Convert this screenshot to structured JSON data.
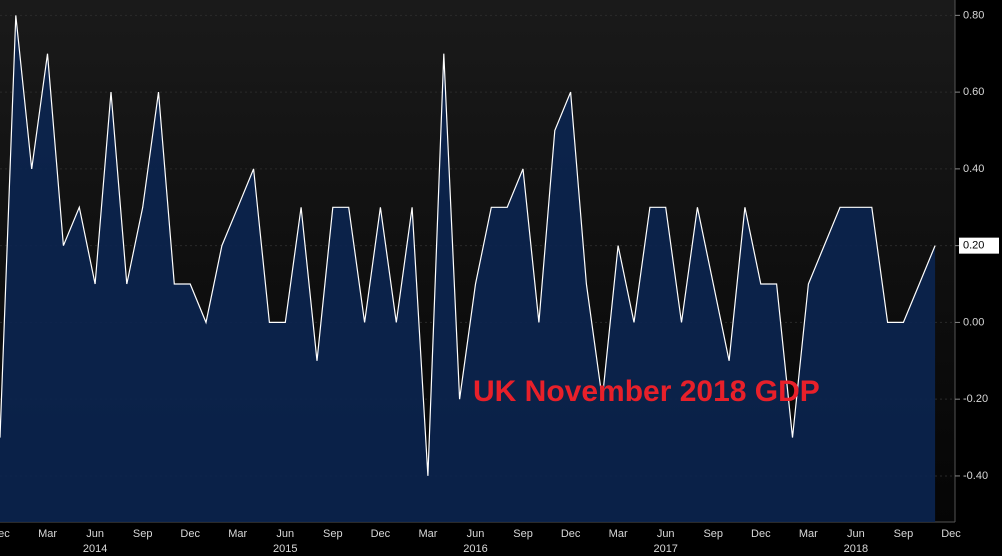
{
  "chart_data": {
    "type": "area",
    "annotation": "UK November 2018 GDP",
    "categories": [
      "Dec",
      null,
      null,
      "Mar",
      null,
      null,
      "Jun",
      null,
      null,
      "Sep",
      null,
      null,
      "Dec",
      null,
      null,
      "Mar",
      null,
      null,
      "Jun",
      null,
      null,
      "Sep",
      null,
      null,
      "Dec",
      null,
      null,
      "Mar",
      null,
      null,
      "Jun",
      null,
      null,
      "Sep",
      null,
      null,
      "Dec",
      null,
      null,
      "Mar",
      null,
      null,
      "Jun",
      null,
      null,
      "Sep",
      null,
      null,
      "Dec",
      null,
      null,
      "Mar",
      null,
      null,
      "Jun",
      null,
      null,
      "Sep",
      null,
      null
    ],
    "years": [
      null,
      null,
      null,
      null,
      null,
      null,
      "2014",
      null,
      null,
      null,
      null,
      null,
      null,
      null,
      null,
      null,
      null,
      null,
      "2015",
      null,
      null,
      null,
      null,
      null,
      null,
      null,
      null,
      null,
      null,
      null,
      "2016",
      null,
      null,
      null,
      null,
      null,
      null,
      null,
      null,
      null,
      null,
      null,
      "2017",
      null,
      null,
      null,
      null,
      null,
      null,
      null,
      null,
      null,
      null,
      null,
      "2018",
      null,
      null,
      null,
      null,
      null
    ],
    "values": [
      -0.3,
      0.8,
      0.4,
      0.7,
      0.2,
      0.3,
      0.1,
      0.6,
      0.1,
      0.3,
      0.6,
      0.1,
      0.1,
      0.0,
      0.2,
      0.3,
      0.4,
      0.0,
      0.0,
      0.3,
      -0.1,
      0.3,
      0.3,
      0.0,
      0.3,
      0.0,
      0.3,
      -0.4,
      0.7,
      -0.2,
      0.1,
      0.3,
      0.3,
      0.4,
      0.0,
      0.5,
      0.6,
      0.1,
      -0.2,
      0.2,
      0.0,
      0.3,
      0.3,
      0.0,
      0.3,
      0.1,
      -0.1,
      0.3,
      0.1,
      0.1,
      -0.3,
      0.1,
      0.2,
      0.3,
      0.3,
      0.3,
      0.0,
      0.0,
      0.1,
      0.2
    ],
    "value_labels": [
      null,
      null,
      null,
      null,
      null,
      null,
      null,
      null,
      null,
      null,
      null,
      null,
      null,
      null,
      null,
      null,
      null,
      null,
      null,
      null,
      null,
      null,
      null,
      null,
      null,
      null,
      null,
      null,
      null,
      null,
      null,
      null,
      null,
      null,
      null,
      null,
      null,
      null,
      null,
      null,
      null,
      null,
      null,
      null,
      null,
      null,
      null,
      null,
      null,
      null,
      null,
      null,
      null,
      null,
      null,
      null,
      null,
      null,
      null,
      "0.20"
    ],
    "last_category_label": "Dec",
    "line_color": "#ffffff",
    "fill_color": "#0b2550",
    "annotation_color": "#e8202a",
    "ylim": [
      -0.52,
      0.84
    ],
    "yticks": [
      {
        "value": -0.4,
        "label": "-0.40"
      },
      {
        "value": -0.2,
        "label": "-0.20"
      },
      {
        "value": 0,
        "label": "0.00"
      },
      {
        "value": 0.2,
        "label": "0.20"
      },
      {
        "value": 0.4,
        "label": "0.40"
      },
      {
        "value": 0.6,
        "label": "0.60"
      },
      {
        "value": 0.8,
        "label": "0.80"
      }
    ],
    "grid": true
  }
}
